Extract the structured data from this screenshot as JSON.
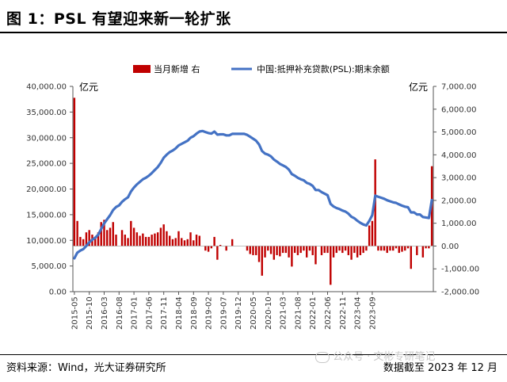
{
  "figure": {
    "title": "图 1：PSL 有望迎来新一轮扩张",
    "source": "资料来源：Wind，光大证券研究所",
    "as_of": "数据截至 2023 年 12 月",
    "watermark": "公众号 · 文彬专研笔记"
  },
  "chart_data": {
    "type": "bar+line",
    "legend_position": "top",
    "colors": {
      "bar": "#c00000",
      "line": "#4472c4"
    },
    "left_axis": {
      "unit": "亿元",
      "range": [
        0,
        40000
      ],
      "ticks": [
        "0.00",
        "5,000.00",
        "10,000.00",
        "15,000.00",
        "20,000.00",
        "25,000.00",
        "30,000.00",
        "35,000.00",
        "40,000.00"
      ]
    },
    "right_axis": {
      "unit": "亿元",
      "range": [
        -2000,
        7000
      ],
      "ticks": [
        "-2,000.00",
        "-1,000.00",
        "0.00",
        "1,000.00",
        "2,000.00",
        "3,000.00",
        "4,000.00",
        "5,000.00",
        "6,000.00",
        "7,000.00"
      ]
    },
    "x_ticks": [
      "2015-05",
      "2015-10",
      "2016-03",
      "2016-08",
      "2017-01",
      "2017-06",
      "2017-11",
      "2018-04",
      "2018-09",
      "2019-02",
      "2019-07",
      "2019-12",
      "2020-05",
      "2020-10",
      "2021-03",
      "2021-08",
      "2022-01",
      "2022-06",
      "2022-11",
      "2023-04",
      "2023-09"
    ],
    "series": [
      {
        "name": "当月新增 右",
        "type": "bar",
        "axis": "right",
        "values": [
          6500,
          1100,
          400,
          300,
          600,
          700,
          500,
          350,
          600,
          1050,
          1150,
          700,
          800,
          1050,
          500,
          0,
          700,
          500,
          350,
          1100,
          800,
          600,
          450,
          550,
          400,
          400,
          500,
          550,
          600,
          800,
          950,
          650,
          450,
          300,
          350,
          650,
          350,
          250,
          300,
          600,
          250,
          500,
          450,
          0,
          -200,
          -250,
          -100,
          400,
          -600,
          50,
          0,
          -200,
          0,
          300,
          0,
          0,
          0,
          0,
          -200,
          -350,
          -400,
          -400,
          -700,
          -1300,
          -500,
          -200,
          -350,
          -600,
          -400,
          -450,
          -300,
          -300,
          -500,
          -900,
          -300,
          -400,
          -300,
          -200,
          -500,
          -200,
          -400,
          -800,
          0,
          -400,
          -300,
          -300,
          -1700,
          -500,
          -300,
          -200,
          -300,
          -200,
          -400,
          -600,
          -300,
          -500,
          -400,
          -300,
          -200,
          900,
          1100,
          3800,
          -200,
          -200,
          -200,
          -300,
          -200,
          -200,
          -100,
          -300,
          -250,
          -200,
          -100,
          -1000,
          0,
          -400,
          0,
          -500,
          -100,
          -100,
          3500
        ]
      },
      {
        "name": "中国:抵押补充贷款(PSL):期末余额",
        "type": "line",
        "axis": "left",
        "values": [
          6500,
          7600,
          8000,
          8300,
          8900,
          9600,
          10100,
          10500,
          11100,
          12200,
          13300,
          14100,
          14900,
          15900,
          16500,
          16800,
          17500,
          18000,
          18400,
          19500,
          20300,
          20900,
          21400,
          21900,
          22200,
          22600,
          23100,
          23700,
          24300,
          25100,
          26100,
          26700,
          27200,
          27500,
          27900,
          28500,
          28800,
          29100,
          29400,
          30000,
          30300,
          30800,
          31200,
          31300,
          31100,
          30900,
          30800,
          31200,
          30600,
          30650,
          30650,
          30450,
          30450,
          30750,
          30750,
          30750,
          30750,
          30750,
          30550,
          30200,
          29800,
          29400,
          28700,
          27400,
          26900,
          26700,
          26350,
          25750,
          25350,
          24900,
          24600,
          24300,
          23800,
          22900,
          22600,
          22200,
          21900,
          21700,
          21200,
          21000,
          20600,
          19800,
          19800,
          19400,
          19100,
          18800,
          17100,
          16600,
          16300,
          16100,
          15800,
          15600,
          15200,
          14600,
          14300,
          13800,
          13400,
          13100,
          12900,
          13800,
          14900,
          18700,
          18500,
          18300,
          18100,
          17800,
          17600,
          17400,
          17300,
          17000,
          16750,
          16550,
          16450,
          15450,
          15450,
          15050,
          15050,
          14550,
          14450,
          14350,
          17850
        ]
      }
    ]
  }
}
